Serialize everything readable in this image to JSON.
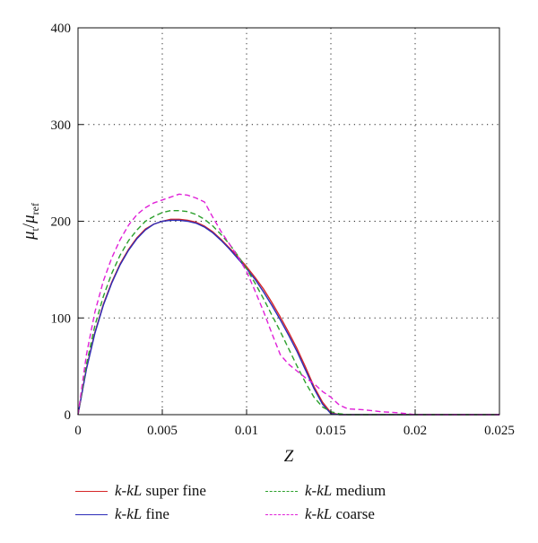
{
  "chart_data": {
    "type": "line",
    "xlabel": "Z",
    "ylabel": {
      "base": "μ",
      "sub1": "t",
      "sep": "/",
      "base2": "μ",
      "sub2": "ref"
    },
    "xlim": [
      0,
      0.025
    ],
    "ylim": [
      0,
      400
    ],
    "xticks": [
      "0",
      "0.005",
      "0.01",
      "0.015",
      "0.02",
      "0.025"
    ],
    "yticks": [
      "0",
      "100",
      "200",
      "300",
      "400"
    ],
    "grid": "dotted",
    "legend_position": "bottom",
    "series": [
      {
        "name_italic": "k-kL",
        "name_rest": " super fine",
        "color": "#d62728",
        "dash": "solid",
        "x": [
          0,
          0.0005,
          0.001,
          0.0015,
          0.002,
          0.0025,
          0.003,
          0.0035,
          0.004,
          0.0045,
          0.005,
          0.0055,
          0.006,
          0.0065,
          0.007,
          0.0075,
          0.008,
          0.0085,
          0.009,
          0.0095,
          0.01,
          0.0105,
          0.011,
          0.0115,
          0.012,
          0.0125,
          0.013,
          0.0135,
          0.014,
          0.0145,
          0.015,
          0.0155,
          0.016,
          0.018,
          0.02,
          0.025
        ],
        "y": [
          0,
          48,
          85,
          114,
          137,
          156,
          171,
          183,
          192,
          197,
          200,
          202,
          202,
          201,
          199,
          195,
          189,
          181,
          172,
          163,
          153,
          142,
          130,
          116,
          101,
          85,
          68,
          49,
          29,
          13,
          2,
          0,
          0,
          0,
          0,
          0
        ]
      },
      {
        "name_italic": "k-kL",
        "name_rest": " fine",
        "color": "#2c2cb8",
        "dash": "solid",
        "x": [
          0,
          0.0005,
          0.001,
          0.0015,
          0.002,
          0.0025,
          0.003,
          0.0035,
          0.004,
          0.0045,
          0.005,
          0.0055,
          0.006,
          0.0065,
          0.007,
          0.0075,
          0.008,
          0.0085,
          0.009,
          0.0095,
          0.01,
          0.0105,
          0.011,
          0.0115,
          0.012,
          0.0125,
          0.013,
          0.0135,
          0.014,
          0.0145,
          0.015,
          0.0155,
          0.016,
          0.018,
          0.02,
          0.025
        ],
        "y": [
          0,
          47,
          84,
          113,
          136,
          155,
          170,
          182,
          191,
          197,
          200,
          201,
          201,
          200,
          198,
          194,
          188,
          180,
          171,
          161,
          151,
          140,
          127,
          113,
          98,
          82,
          65,
          46,
          27,
          11,
          1,
          0,
          0,
          0,
          0,
          0
        ]
      },
      {
        "name_italic": "k-kL",
        "name_rest": " medium",
        "color": "#2ca02c",
        "dash": "dashed",
        "x": [
          0,
          0.0005,
          0.001,
          0.0015,
          0.002,
          0.0025,
          0.003,
          0.0035,
          0.004,
          0.0045,
          0.005,
          0.0055,
          0.006,
          0.0065,
          0.007,
          0.0075,
          0.008,
          0.0085,
          0.009,
          0.0095,
          0.01,
          0.0105,
          0.011,
          0.0115,
          0.012,
          0.0125,
          0.013,
          0.0135,
          0.014,
          0.0145,
          0.015,
          0.0155,
          0.016,
          0.017,
          0.018,
          0.02,
          0.025
        ],
        "y": [
          0,
          52,
          92,
          122,
          146,
          165,
          180,
          191,
          200,
          205,
          209,
          211,
          211,
          210,
          207,
          202,
          195,
          186,
          176,
          164,
          151,
          136,
          120,
          103,
          86,
          68,
          50,
          33,
          18,
          8,
          3,
          1,
          0,
          0,
          0,
          0,
          0
        ]
      },
      {
        "name_italic": "k-kL",
        "name_rest": " coarse",
        "color": "#e020d8",
        "dash": "dashed",
        "x": [
          0,
          0.0005,
          0.001,
          0.0015,
          0.002,
          0.0025,
          0.003,
          0.0035,
          0.004,
          0.0045,
          0.005,
          0.0055,
          0.006,
          0.0065,
          0.007,
          0.0075,
          0.008,
          0.0085,
          0.009,
          0.0095,
          0.01,
          0.0105,
          0.011,
          0.0115,
          0.012,
          0.0125,
          0.013,
          0.0135,
          0.014,
          0.0145,
          0.015,
          0.0155,
          0.016,
          0.017,
          0.018,
          0.019,
          0.02,
          0.025
        ],
        "y": [
          0,
          62,
          106,
          138,
          162,
          181,
          196,
          207,
          214,
          219,
          222,
          225,
          228,
          227,
          224,
          220,
          204,
          189,
          176,
          163,
          148,
          128,
          107,
          84,
          62,
          52,
          45,
          38,
          32,
          24,
          18,
          10,
          6,
          5,
          3,
          2,
          0,
          0
        ]
      }
    ]
  }
}
